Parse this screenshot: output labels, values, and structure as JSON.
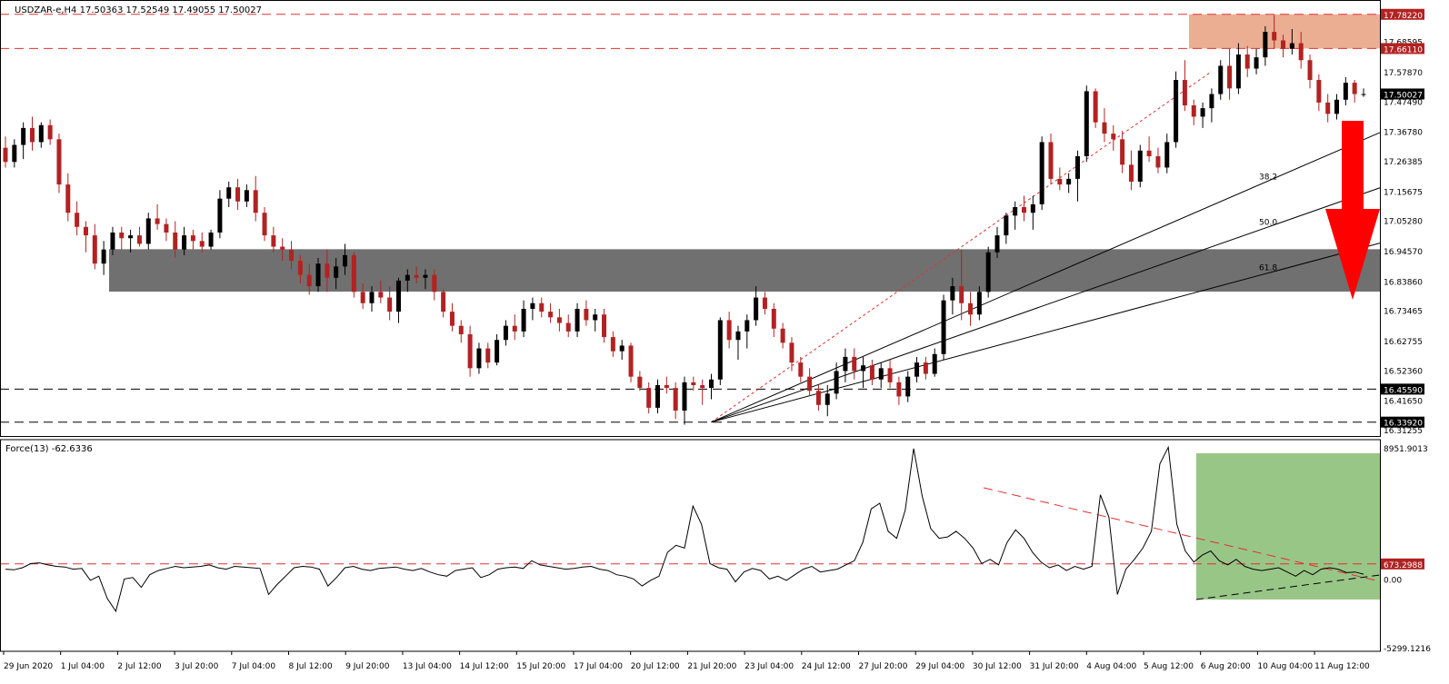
{
  "main_header": {
    "symbol": "USDZAR-e,H4",
    "ohlc": "17.50363 17.52549 17.49055 17.50027"
  },
  "indicator_header": {
    "label": "Force(13) -62.6336"
  },
  "colors": {
    "bull": "#000000",
    "bear": "#b22222",
    "resistance_zone": "#e8a080",
    "support_zone": "#707070",
    "indicator_zone": "#8dc07a",
    "dashed_red": "#e03030",
    "arrow": "#ff0000",
    "current_price_bg": "#000000"
  },
  "price_axis": {
    "ticks": [
      "17.68595",
      "17.57870",
      "17.47490",
      "17.36780",
      "17.26385",
      "17.15675",
      "17.05280",
      "16.94570",
      "16.83860",
      "16.73465",
      "16.62755",
      "16.52360",
      "16.41650",
      "16.31255"
    ],
    "tick_values": [
      17.68595,
      17.5787,
      17.4749,
      17.3678,
      17.26385,
      17.15675,
      17.0528,
      16.9457,
      16.8386,
      16.73465,
      16.62755,
      16.5236,
      16.4165,
      16.31255
    ],
    "labels": [
      {
        "text": "17.78220",
        "value": 17.7822,
        "style": "red"
      },
      {
        "text": "17.66110",
        "value": 17.6611,
        "style": "red"
      },
      {
        "text": "17.50027",
        "value": 17.50027,
        "style": "black"
      },
      {
        "text": "16.45590",
        "value": 16.4559,
        "style": "black"
      },
      {
        "text": "16.33920",
        "value": 16.3392,
        "style": "black"
      }
    ]
  },
  "force_axis": {
    "top_label": "8951.9013",
    "bottom_label": "-5299.1216",
    "zero_label": "0.00",
    "level_label": "673.2988",
    "top_value": 8951.9013,
    "bottom_value": -5299.1216,
    "level_value": 673.2988
  },
  "time_axis": [
    "29 Jun 2020",
    "1 Jul 04:00",
    "2 Jul 12:00",
    "3 Jul 20:00",
    "7 Jul 04:00",
    "8 Jul 12:00",
    "9 Jul 20:00",
    "13 Jul 04:00",
    "14 Jul 12:00",
    "15 Jul 20:00",
    "17 Jul 04:00",
    "20 Jul 12:00",
    "21 Jul 20:00",
    "23 Jul 04:00",
    "24 Jul 12:00",
    "27 Jul 20:00",
    "29 Jul 04:00",
    "30 Jul 12:00",
    "31 Jul 20:00",
    "4 Aug 04:00",
    "5 Aug 12:00",
    "6 Aug 20:00",
    "10 Aug 04:00",
    "11 Aug 12:00"
  ],
  "fib_labels": [
    "38.2",
    "50.0",
    "61.8"
  ],
  "chart_data": {
    "type": "candlestick",
    "symbol": "USDZAR",
    "timeframe": "H4",
    "zones": {
      "resistance": [
        17.6611,
        17.7822
      ],
      "support": [
        16.801,
        16.951
      ]
    },
    "horizontal_levels": [
      17.7822,
      17.6611,
      16.4559,
      16.3392
    ],
    "candles": [
      [
        17.31,
        17.35,
        17.24,
        17.26
      ],
      [
        17.26,
        17.34,
        17.24,
        17.32
      ],
      [
        17.32,
        17.4,
        17.27,
        17.38
      ],
      [
        17.38,
        17.42,
        17.3,
        17.33
      ],
      [
        17.33,
        17.4,
        17.31,
        17.39
      ],
      [
        17.39,
        17.41,
        17.32,
        17.34
      ],
      [
        17.34,
        17.36,
        17.15,
        17.18
      ],
      [
        17.18,
        17.22,
        17.05,
        17.08
      ],
      [
        17.08,
        17.12,
        17.0,
        17.03
      ],
      [
        17.03,
        17.05,
        16.94,
        17.0
      ],
      [
        17.0,
        17.04,
        16.88,
        16.9
      ],
      [
        16.9,
        16.98,
        16.86,
        16.95
      ],
      [
        16.95,
        17.03,
        16.93,
        17.01
      ],
      [
        17.01,
        17.03,
        16.95,
        16.99
      ],
      [
        16.99,
        17.02,
        16.94,
        17.0
      ],
      [
        17.0,
        17.03,
        16.96,
        16.97
      ],
      [
        16.97,
        17.08,
        16.95,
        17.06
      ],
      [
        17.06,
        17.11,
        17.02,
        17.04
      ],
      [
        17.04,
        17.06,
        16.98,
        17.01
      ],
      [
        17.01,
        17.05,
        16.92,
        16.95
      ],
      [
        16.95,
        17.03,
        16.93,
        17.0
      ],
      [
        17.0,
        17.02,
        16.95,
        16.98
      ],
      [
        16.98,
        17.01,
        16.94,
        16.96
      ],
      [
        16.96,
        17.02,
        16.95,
        17.01
      ],
      [
        17.01,
        17.16,
        16.99,
        17.13
      ],
      [
        17.13,
        17.19,
        17.1,
        17.17
      ],
      [
        17.17,
        17.2,
        17.09,
        17.12
      ],
      [
        17.12,
        17.18,
        17.1,
        17.16
      ],
      [
        17.16,
        17.21,
        17.05,
        17.08
      ],
      [
        17.08,
        17.1,
        16.98,
        17.0
      ],
      [
        17.0,
        17.03,
        16.94,
        16.96
      ],
      [
        16.96,
        16.99,
        16.91,
        16.95
      ],
      [
        16.95,
        16.98,
        16.88,
        16.91
      ],
      [
        16.91,
        16.93,
        16.83,
        16.86
      ],
      [
        16.86,
        16.9,
        16.79,
        16.82
      ],
      [
        16.82,
        16.92,
        16.8,
        16.9
      ],
      [
        16.9,
        16.95,
        16.8,
        16.85
      ],
      [
        16.85,
        16.92,
        16.81,
        16.89
      ],
      [
        16.89,
        16.97,
        16.86,
        16.93
      ],
      [
        16.93,
        16.94,
        16.78,
        16.8
      ],
      [
        16.8,
        16.83,
        16.74,
        16.76
      ],
      [
        16.76,
        16.82,
        16.73,
        16.8
      ],
      [
        16.8,
        16.84,
        16.76,
        16.78
      ],
      [
        16.78,
        16.82,
        16.7,
        16.73
      ],
      [
        16.73,
        16.85,
        16.69,
        16.84
      ],
      [
        16.84,
        16.88,
        16.8,
        16.86
      ],
      [
        16.86,
        16.89,
        16.83,
        16.85
      ],
      [
        16.85,
        16.88,
        16.81,
        16.86
      ],
      [
        16.86,
        16.88,
        16.77,
        16.8
      ],
      [
        16.8,
        16.81,
        16.71,
        16.73
      ],
      [
        16.73,
        16.76,
        16.66,
        16.68
      ],
      [
        16.68,
        16.7,
        16.62,
        16.65
      ],
      [
        16.65,
        16.68,
        16.5,
        16.53
      ],
      [
        16.53,
        16.62,
        16.51,
        16.6
      ],
      [
        16.6,
        16.62,
        16.53,
        16.55
      ],
      [
        16.55,
        16.65,
        16.54,
        16.63
      ],
      [
        16.63,
        16.7,
        16.61,
        16.68
      ],
      [
        16.68,
        16.72,
        16.63,
        16.66
      ],
      [
        16.66,
        16.77,
        16.64,
        16.74
      ],
      [
        16.74,
        16.78,
        16.7,
        16.76
      ],
      [
        16.76,
        16.78,
        16.71,
        16.73
      ],
      [
        16.73,
        16.76,
        16.69,
        16.71
      ],
      [
        16.71,
        16.74,
        16.66,
        16.69
      ],
      [
        16.69,
        16.72,
        16.64,
        16.66
      ],
      [
        16.66,
        16.76,
        16.64,
        16.74
      ],
      [
        16.74,
        16.77,
        16.68,
        16.7
      ],
      [
        16.7,
        16.74,
        16.66,
        16.72
      ],
      [
        16.72,
        16.74,
        16.62,
        16.64
      ],
      [
        16.64,
        16.66,
        16.57,
        16.59
      ],
      [
        16.59,
        16.63,
        16.56,
        16.61
      ],
      [
        16.61,
        16.62,
        16.48,
        16.5
      ],
      [
        16.5,
        16.52,
        16.45,
        16.46
      ],
      [
        16.46,
        16.48,
        16.37,
        16.39
      ],
      [
        16.39,
        16.49,
        16.37,
        16.47
      ],
      [
        16.47,
        16.5,
        16.44,
        16.46
      ],
      [
        16.46,
        16.48,
        16.35,
        16.38
      ],
      [
        16.38,
        16.5,
        16.33,
        16.48
      ],
      [
        16.48,
        16.5,
        16.45,
        16.47
      ],
      [
        16.47,
        16.49,
        16.4,
        16.46
      ],
      [
        16.46,
        16.51,
        16.42,
        16.49
      ],
      [
        16.49,
        16.71,
        16.47,
        16.7
      ],
      [
        16.7,
        16.73,
        16.6,
        16.63
      ],
      [
        16.63,
        16.68,
        16.56,
        16.66
      ],
      [
        16.66,
        16.72,
        16.6,
        16.7
      ],
      [
        16.7,
        16.82,
        16.68,
        16.78
      ],
      [
        16.78,
        16.8,
        16.72,
        16.74
      ],
      [
        16.74,
        16.76,
        16.64,
        16.67
      ],
      [
        16.67,
        16.69,
        16.6,
        16.62
      ],
      [
        16.62,
        16.64,
        16.52,
        16.55
      ],
      [
        16.55,
        16.57,
        16.48,
        16.5
      ],
      [
        16.5,
        16.53,
        16.43,
        16.45
      ],
      [
        16.45,
        16.47,
        16.38,
        16.4
      ],
      [
        16.4,
        16.47,
        16.36,
        16.44
      ],
      [
        16.44,
        16.55,
        16.42,
        16.52
      ],
      [
        16.52,
        16.6,
        16.48,
        16.57
      ],
      [
        16.57,
        16.6,
        16.49,
        16.52
      ],
      [
        16.52,
        16.57,
        16.46,
        16.54
      ],
      [
        16.54,
        16.56,
        16.47,
        16.49
      ],
      [
        16.49,
        16.55,
        16.46,
        16.53
      ],
      [
        16.53,
        16.56,
        16.46,
        16.48
      ],
      [
        16.48,
        16.5,
        16.4,
        16.43
      ],
      [
        16.43,
        16.52,
        16.41,
        16.5
      ],
      [
        16.5,
        16.57,
        16.48,
        16.55
      ],
      [
        16.55,
        16.57,
        16.49,
        16.51
      ],
      [
        16.51,
        16.6,
        16.5,
        16.58
      ],
      [
        16.58,
        16.79,
        16.56,
        16.77
      ],
      [
        16.77,
        16.85,
        16.72,
        16.82
      ],
      [
        16.82,
        16.95,
        16.7,
        16.76
      ],
      [
        16.76,
        16.8,
        16.68,
        16.72
      ],
      [
        16.72,
        16.82,
        16.7,
        16.8
      ],
      [
        16.8,
        16.96,
        16.78,
        16.94
      ],
      [
        16.94,
        17.03,
        16.92,
        17.0
      ],
      [
        17.0,
        17.08,
        16.97,
        17.07
      ],
      [
        17.07,
        17.12,
        17.02,
        17.1
      ],
      [
        17.1,
        17.14,
        17.05,
        17.08
      ],
      [
        17.08,
        17.14,
        17.02,
        17.11
      ],
      [
        17.11,
        17.35,
        17.09,
        17.33
      ],
      [
        17.33,
        17.36,
        17.18,
        17.2
      ],
      [
        17.2,
        17.24,
        17.16,
        17.18
      ],
      [
        17.18,
        17.22,
        17.15,
        17.2
      ],
      [
        17.2,
        17.3,
        17.12,
        17.28
      ],
      [
        17.28,
        17.53,
        17.26,
        17.51
      ],
      [
        17.51,
        17.52,
        17.38,
        17.4
      ],
      [
        17.4,
        17.45,
        17.33,
        17.36
      ],
      [
        17.36,
        17.39,
        17.3,
        17.34
      ],
      [
        17.34,
        17.37,
        17.22,
        17.25
      ],
      [
        17.25,
        17.3,
        17.16,
        17.19
      ],
      [
        17.19,
        17.32,
        17.17,
        17.3
      ],
      [
        17.3,
        17.35,
        17.26,
        17.28
      ],
      [
        17.28,
        17.31,
        17.22,
        17.24
      ],
      [
        17.24,
        17.36,
        17.22,
        17.33
      ],
      [
        17.33,
        17.58,
        17.31,
        17.55
      ],
      [
        17.55,
        17.62,
        17.44,
        17.46
      ],
      [
        17.46,
        17.48,
        17.39,
        17.42
      ],
      [
        17.42,
        17.47,
        17.38,
        17.45
      ],
      [
        17.45,
        17.52,
        17.4,
        17.5
      ],
      [
        17.5,
        17.62,
        17.48,
        17.6
      ],
      [
        17.6,
        17.66,
        17.48,
        17.52
      ],
      [
        17.52,
        17.68,
        17.5,
        17.64
      ],
      [
        17.64,
        17.67,
        17.56,
        17.59
      ],
      [
        17.59,
        17.66,
        17.57,
        17.63
      ],
      [
        17.63,
        17.74,
        17.6,
        17.72
      ],
      [
        17.72,
        17.78,
        17.66,
        17.69
      ],
      [
        17.69,
        17.71,
        17.63,
        17.66
      ],
      [
        17.66,
        17.73,
        17.64,
        17.68
      ],
      [
        17.68,
        17.72,
        17.59,
        17.62
      ],
      [
        17.62,
        17.64,
        17.52,
        17.55
      ],
      [
        17.55,
        17.57,
        17.44,
        17.47
      ],
      [
        17.47,
        17.5,
        17.4,
        17.43
      ],
      [
        17.43,
        17.5,
        17.41,
        17.48
      ],
      [
        17.48,
        17.56,
        17.46,
        17.54
      ],
      [
        17.54,
        17.55,
        17.47,
        17.5
      ],
      [
        17.5,
        17.52,
        17.49,
        17.5
      ]
    ],
    "force_index": [
      300,
      250,
      400,
      700,
      750,
      600,
      500,
      450,
      300,
      350,
      -500,
      -200,
      -1800,
      -2700,
      -400,
      -300,
      -1000,
      -100,
      200,
      350,
      500,
      400,
      450,
      500,
      600,
      400,
      300,
      500,
      450,
      400,
      350,
      -1500,
      -800,
      -200,
      400,
      500,
      450,
      300,
      -900,
      -300,
      400,
      500,
      300,
      200,
      350,
      400,
      450,
      300,
      200,
      350,
      100,
      -100,
      -200,
      200,
      300,
      400,
      -300,
      -100,
      300,
      400,
      450,
      350,
      900,
      600,
      500,
      400,
      300,
      350,
      450,
      500,
      300,
      200,
      -100,
      -200,
      -400,
      -900,
      -500,
      -200,
      1500,
      2000,
      1800,
      4800,
      3500,
      700,
      400,
      300,
      -600,
      100,
      350,
      200,
      -400,
      -200,
      -500,
      -100,
      300,
      500,
      100,
      200,
      300,
      600,
      900,
      2200,
      4600,
      5000,
      3000,
      2500,
      4500,
      8900,
      5500,
      3200,
      2500,
      2600,
      3000,
      2500,
      1800,
      700,
      1000,
      600,
      2200,
      3100,
      2500,
      1500,
      800,
      400,
      600,
      200,
      500,
      300,
      500,
      5600,
      4000,
      -1500,
      300,
      1000,
      1800,
      3000,
      7800,
      9000,
      3500,
      1600,
      800,
      1300,
      1600,
      900,
      600,
      1000,
      500,
      300,
      200,
      300,
      400,
      100,
      -200,
      200,
      -100,
      300,
      400,
      300,
      50,
      100,
      -60
    ],
    "fib_fan": {
      "origin_index": 79,
      "origin_price": 16.3392,
      "target_index": 135,
      "target_price": 17.58,
      "levels": [
        0.382,
        0.5,
        0.618
      ]
    },
    "force_level": 673.2988,
    "force_range": [
      -5299.1216,
      8951.9013
    ]
  }
}
